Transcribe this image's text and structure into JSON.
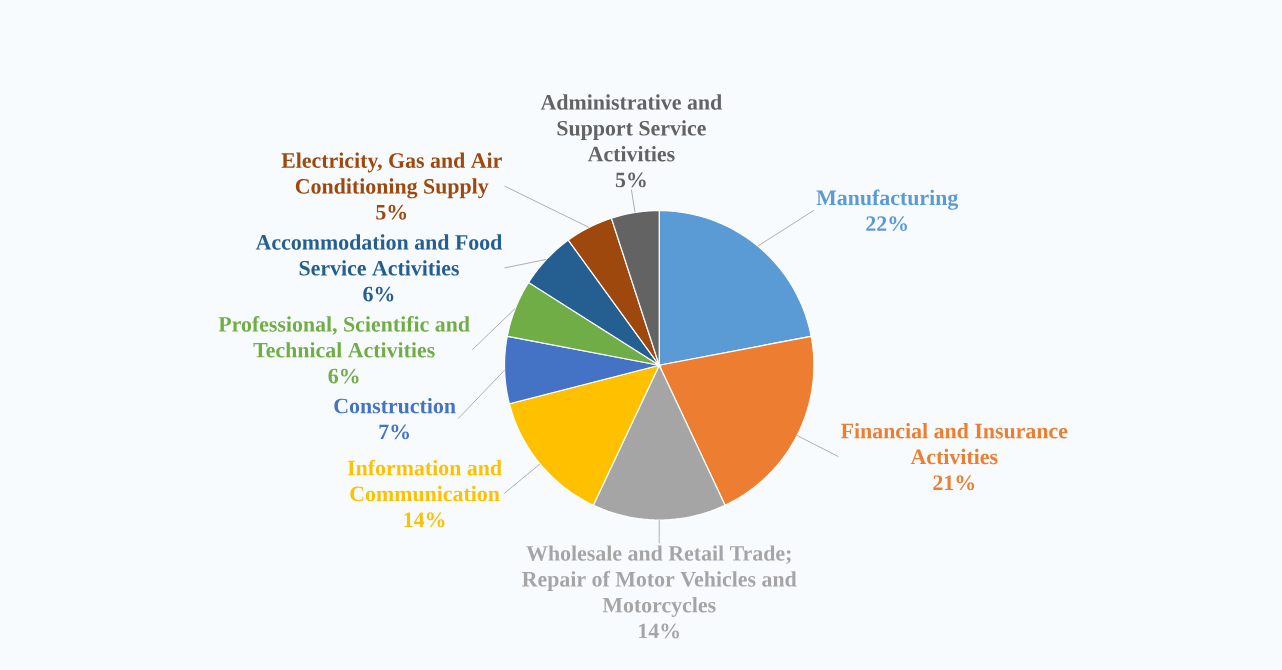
{
  "chart_data": {
    "type": "pie",
    "categories": [
      "Manufacturing",
      "Financial and Insurance Activities",
      "Wholesale and Retail Trade; Repair of Motor Vehicles and Motorcycles",
      "Information and Communication",
      "Construction",
      "Professional, Scientific and Technical Activities",
      "Accommodation and Food Service Activities",
      "Electricity, Gas and Air Conditioning Supply",
      "Administrative and Support Service Activities"
    ],
    "values": [
      22,
      21,
      14,
      14,
      7,
      6,
      6,
      5,
      5
    ],
    "colors": [
      "#5b9bd5",
      "#ed7d31",
      "#a5a5a5",
      "#ffc000",
      "#4472c4",
      "#70ad47",
      "#255e91",
      "#9e480e",
      "#636363"
    ],
    "value_labels": [
      "22%",
      "21%",
      "14%",
      "14%",
      "7%",
      "6%",
      "6%",
      "5%",
      "5%"
    ]
  }
}
